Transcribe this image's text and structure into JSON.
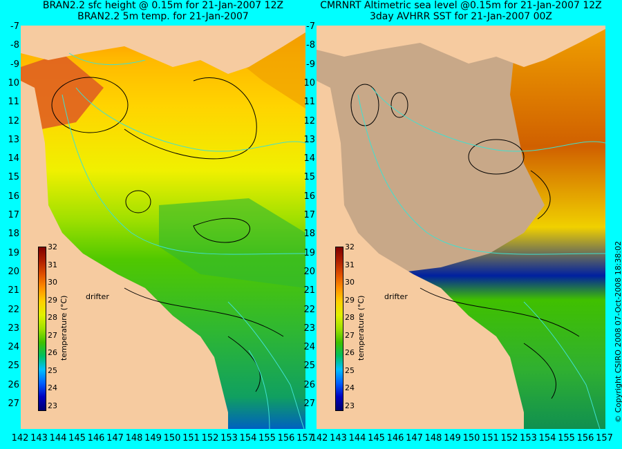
{
  "left_panel": {
    "title_line1": "BRAN2.2 sfc height @ 0.15m for 21-Jan-2007 12Z",
    "title_line2": "BRAN2.2 5m temp. for 21-Jan-2007"
  },
  "right_panel": {
    "title_line1": "CMRNRT Altimetric sea level  @0.15m  for 21-Jan-2007 12Z",
    "title_line2": "3day AVHRR SST for 21-Jan-2007 00Z"
  },
  "latitudes": [
    "-7",
    "-8",
    "-9",
    "10",
    "11",
    "12",
    "13",
    "14",
    "15",
    "16",
    "17",
    "18",
    "19",
    "20",
    "21",
    "22",
    "23",
    "24",
    "25",
    "26",
    "27"
  ],
  "longitudes": [
    "142",
    "143",
    "144",
    "145",
    "146",
    "147",
    "148",
    "149",
    "150",
    "151",
    "152",
    "153",
    "154",
    "155",
    "156",
    "157"
  ],
  "colorbar": {
    "title": "temperature (°C)",
    "labels": [
      "32",
      "31",
      "30",
      "29",
      "28",
      "27",
      "26",
      "25",
      "24",
      "23"
    ],
    "range": [
      23,
      32
    ],
    "colors": [
      "#000070",
      "#0000c0",
      "#0060ff",
      "#00c0ff",
      "#00c060",
      "#40c000",
      "#a0e000",
      "#e0f000",
      "#ffd000",
      "#ff9000",
      "#e05000",
      "#b02000",
      "#800000"
    ]
  },
  "drifter_label": "drifter",
  "copyright": "© Copyright CSIRO 2008   07-Oct-2008 18:38:02",
  "map": {
    "land_color": "#f6cba0",
    "ocean_cyan": "#40e0d0",
    "missing_data_color": "#c8a888"
  }
}
